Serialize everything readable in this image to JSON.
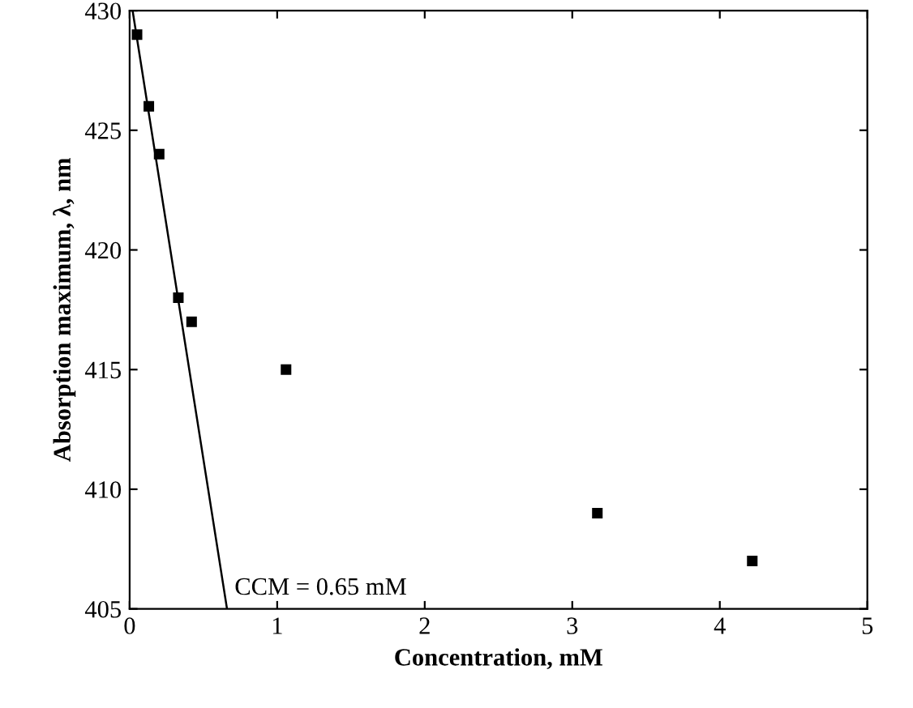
{
  "chart_data": {
    "type": "scatter",
    "xlabel": "Concentration, mM",
    "ylabel": "Absorption maximum, λ, nm",
    "xlim": [
      0,
      5
    ],
    "ylim": [
      405,
      430
    ],
    "xticks": [
      0,
      1,
      2,
      3,
      4,
      5
    ],
    "yticks": [
      405,
      410,
      415,
      420,
      425,
      430
    ],
    "grid": false,
    "legend": false,
    "series": [
      {
        "marker": "square",
        "color": "#000000",
        "x": [
          0.05,
          0.13,
          0.2,
          0.33,
          0.42,
          1.06,
          3.17,
          4.22
        ],
        "values": [
          429,
          426,
          424,
          418,
          417,
          415,
          409,
          407
        ]
      },
      {
        "type": "line",
        "color": "#000000",
        "x": [
          0.02,
          0.66
        ],
        "values": [
          430,
          405
        ]
      }
    ],
    "annotations": [
      {
        "text": "CCM = 0.65 mM",
        "x": 0.65,
        "y": 405
      }
    ]
  }
}
